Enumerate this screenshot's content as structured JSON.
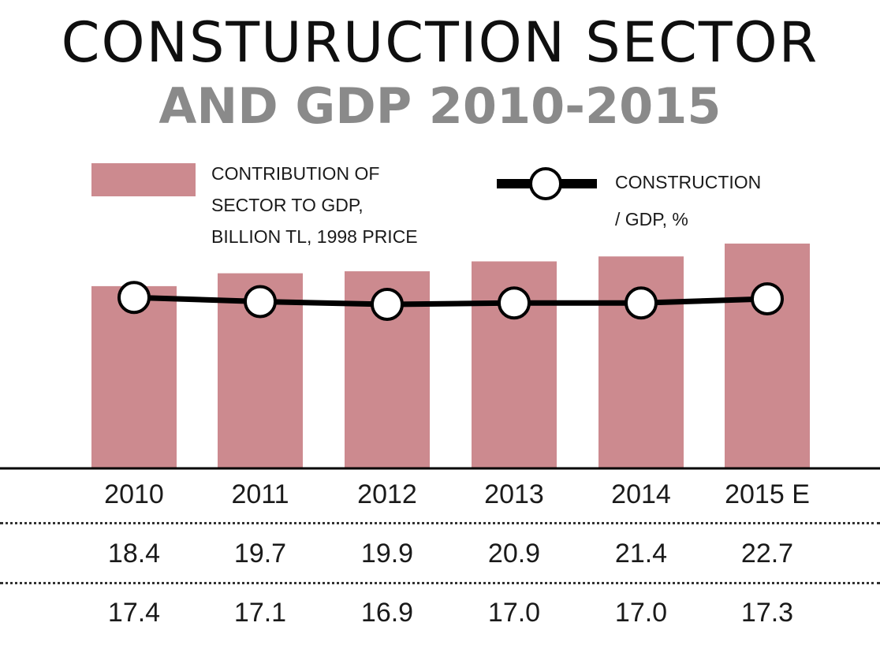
{
  "title_line1": "CONSTURUCTION SECTOR",
  "title_line2": "AND GDP 2010-2015",
  "legend": {
    "bar_label_lines": [
      "CONTRIBUTION OF",
      "SECTOR TO GDP,",
      "BILLION TL, 1998 PRICE"
    ],
    "line_label_lines": [
      "CONSTRUCTION",
      "/ GDP, %"
    ]
  },
  "colors": {
    "bar": "#cc8a8f",
    "line": "#000000",
    "marker_fill": "#ffffff",
    "title_sub": "#8a8a8a"
  },
  "chart_data": {
    "type": "bar",
    "title": "CONSTURUCTION SECTOR AND GDP 2010-2015",
    "categories": [
      "2010",
      "2011",
      "2012",
      "2013",
      "2014",
      "2015 E"
    ],
    "series": [
      {
        "name": "CONTRIBUTION OF SECTOR TO GDP, BILLION TL, 1998 PRICE",
        "type": "bar",
        "values": [
          18.4,
          19.7,
          19.9,
          20.9,
          21.4,
          22.7
        ]
      },
      {
        "name": "CONSTRUCTION / GDP, %",
        "type": "line",
        "values": [
          17.4,
          17.1,
          16.9,
          17.0,
          17.0,
          17.3
        ]
      }
    ],
    "table_rows": [
      [
        "18.4",
        "19.7",
        "19.9",
        "20.9",
        "21.4",
        "22.7"
      ],
      [
        "17.4",
        "17.1",
        "16.9",
        "17.0",
        "17.0",
        "17.3"
      ]
    ],
    "xlabel": "",
    "ylabel": "",
    "grid": false
  }
}
